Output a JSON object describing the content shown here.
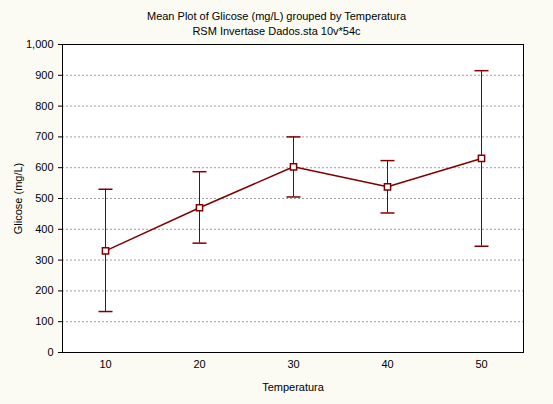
{
  "chart_data": {
    "type": "line",
    "title": "Mean Plot of Glicose (mg/L) grouped by  Temperatura",
    "subtitle": "RSM Invertase Dados.sta 10v*54c",
    "x_label": "Temperatura",
    "y_label": "Glicose (mg/L)",
    "categories": [
      10,
      20,
      30,
      40,
      50
    ],
    "values": [
      330,
      470,
      603,
      538,
      630
    ],
    "lower": [
      133,
      355,
      505,
      453,
      345
    ],
    "upper": [
      530,
      587,
      700,
      623,
      915
    ],
    "color": "#800000",
    "marker": "square",
    "ylim": [
      0,
      1000
    ],
    "yticks": [
      0,
      100,
      200,
      300,
      400,
      500,
      600,
      700,
      800,
      900,
      1000
    ],
    "grid": true
  }
}
